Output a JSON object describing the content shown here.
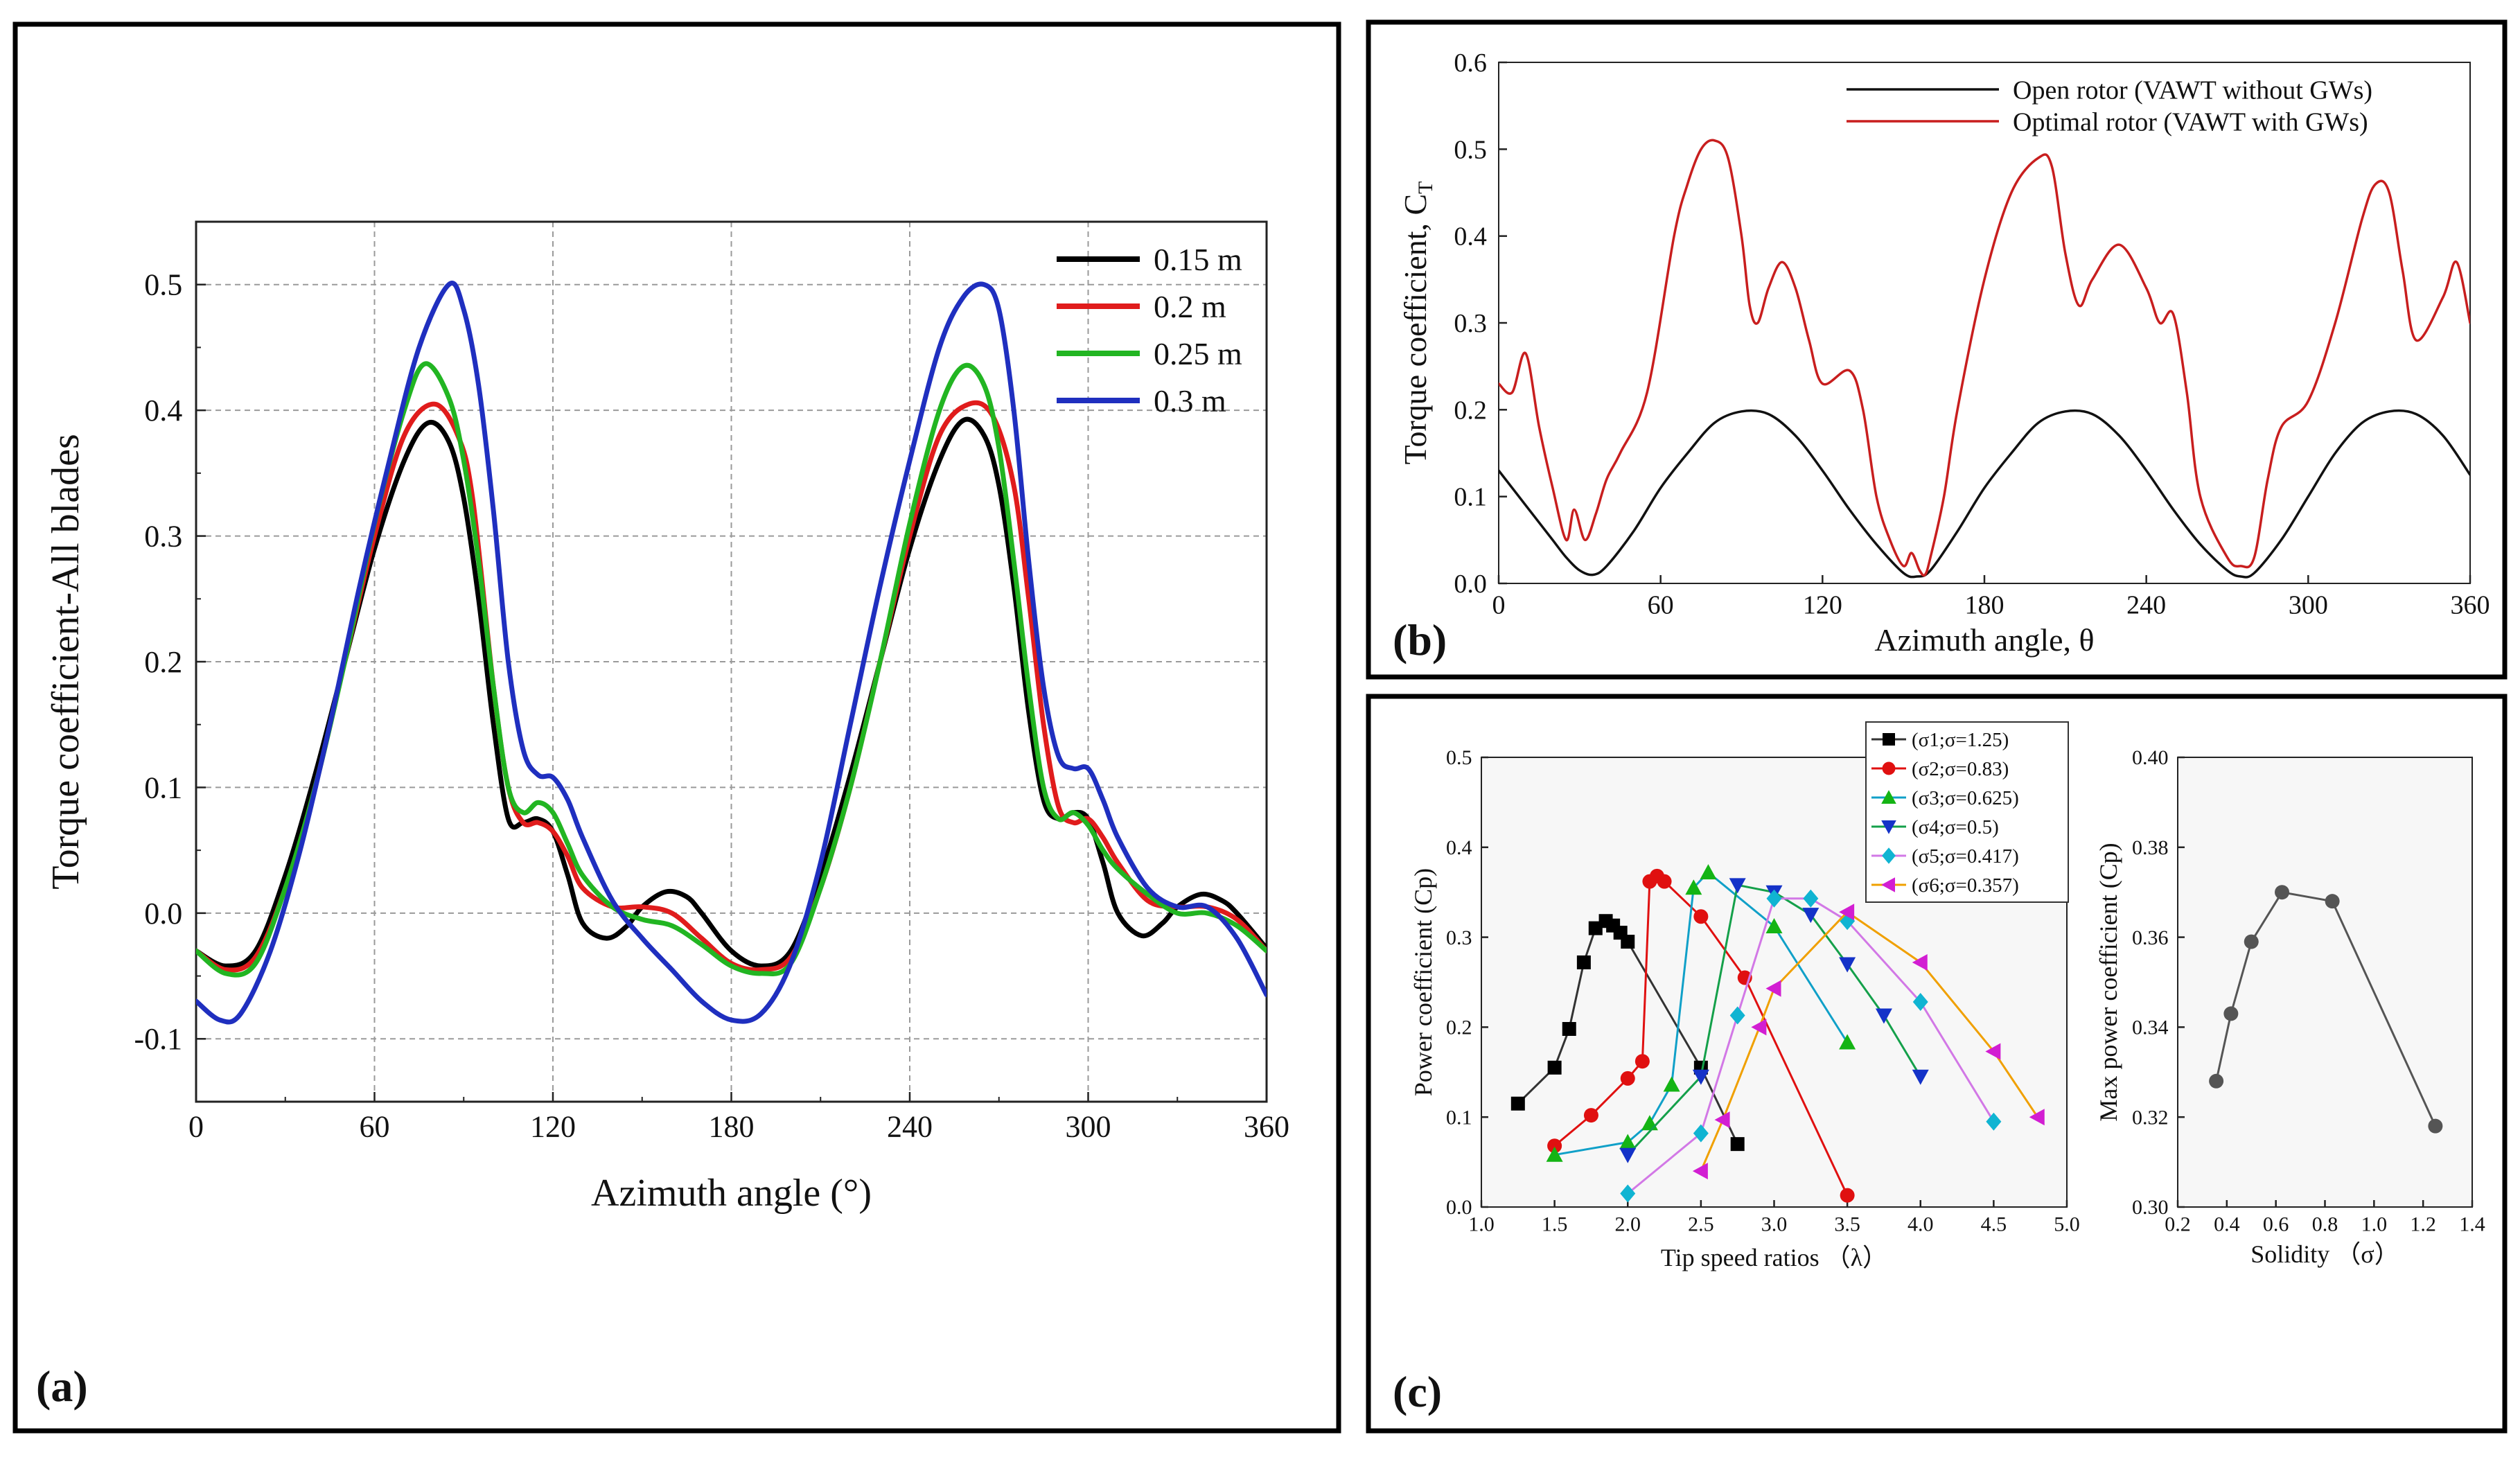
{
  "chart_data": [
    {
      "panel_label": "(a)",
      "type": "line",
      "xlabel": "Azimuth angle (°)",
      "ylabel": "Torque coefficient-All blades",
      "xlim": [
        0,
        360
      ],
      "ylim": [
        -0.15,
        0.55
      ],
      "x_ticks": [
        "0",
        "60",
        "120",
        "180",
        "240",
        "300",
        "360"
      ],
      "y_ticks": [
        "-0.1",
        "0.0",
        "0.1",
        "0.2",
        "0.3",
        "0.4",
        "0.5"
      ],
      "grid": true,
      "legend_position": "top-right",
      "series": [
        {
          "name": "0.15 m",
          "color": "#000000",
          "x": [
            0,
            10,
            20,
            30,
            40,
            50,
            60,
            70,
            78,
            85,
            90,
            95,
            100,
            105,
            110,
            115,
            120,
            125,
            130,
            138,
            145,
            150,
            158,
            165,
            170,
            180,
            190,
            200,
            210,
            220,
            230,
            240,
            250,
            258,
            265,
            270,
            275,
            280,
            285,
            290,
            295,
            300,
            305,
            310,
            318,
            325,
            330,
            338,
            345,
            350,
            360
          ],
          "y": [
            -0.03,
            -0.042,
            -0.03,
            0.03,
            0.11,
            0.2,
            0.29,
            0.36,
            0.39,
            0.375,
            0.33,
            0.25,
            0.15,
            0.075,
            0.072,
            0.075,
            0.065,
            0.03,
            -0.008,
            -0.02,
            -0.01,
            0.005,
            0.017,
            0.013,
            0.0,
            -0.03,
            -0.042,
            -0.03,
            0.03,
            0.11,
            0.2,
            0.29,
            0.36,
            0.392,
            0.38,
            0.34,
            0.26,
            0.16,
            0.09,
            0.075,
            0.08,
            0.075,
            0.04,
            0.0,
            -0.018,
            -0.008,
            0.005,
            0.015,
            0.01,
            0.0,
            -0.028
          ]
        },
        {
          "name": "0.2 m",
          "color": "#e01c1c",
          "x": [
            0,
            10,
            20,
            30,
            40,
            50,
            60,
            70,
            80,
            88,
            93,
            100,
            105,
            110,
            115,
            120,
            125,
            130,
            140,
            150,
            160,
            170,
            180,
            190,
            200,
            210,
            220,
            230,
            240,
            250,
            260,
            268,
            275,
            280,
            285,
            290,
            295,
            300,
            305,
            310,
            320,
            330,
            340,
            350,
            360
          ],
          "y": [
            -0.03,
            -0.045,
            -0.035,
            0.02,
            0.1,
            0.2,
            0.3,
            0.38,
            0.405,
            0.38,
            0.33,
            0.18,
            0.1,
            0.072,
            0.072,
            0.065,
            0.045,
            0.02,
            0.005,
            0.005,
            0.0,
            -0.02,
            -0.04,
            -0.045,
            -0.035,
            0.02,
            0.1,
            0.2,
            0.3,
            0.38,
            0.405,
            0.395,
            0.34,
            0.25,
            0.15,
            0.085,
            0.072,
            0.075,
            0.06,
            0.04,
            0.01,
            0.005,
            0.005,
            -0.005,
            -0.03
          ]
        },
        {
          "name": "0.25 m",
          "color": "#22b522",
          "x": [
            0,
            10,
            20,
            30,
            40,
            50,
            60,
            70,
            77,
            85,
            90,
            95,
            100,
            105,
            110,
            115,
            120,
            125,
            130,
            140,
            150,
            160,
            170,
            180,
            190,
            200,
            210,
            220,
            230,
            240,
            250,
            258,
            265,
            270,
            275,
            280,
            285,
            290,
            295,
            300,
            305,
            310,
            320,
            330,
            340,
            350,
            360
          ],
          "y": [
            -0.03,
            -0.048,
            -0.04,
            0.02,
            0.1,
            0.2,
            0.31,
            0.4,
            0.437,
            0.41,
            0.36,
            0.28,
            0.18,
            0.1,
            0.08,
            0.088,
            0.08,
            0.055,
            0.03,
            0.005,
            -0.005,
            -0.01,
            -0.025,
            -0.042,
            -0.048,
            -0.04,
            0.02,
            0.1,
            0.2,
            0.31,
            0.4,
            0.435,
            0.42,
            0.37,
            0.28,
            0.18,
            0.1,
            0.075,
            0.08,
            0.07,
            0.05,
            0.035,
            0.015,
            0.0,
            0.0,
            -0.01,
            -0.03
          ]
        },
        {
          "name": "0.3 m",
          "color": "#1f2fbf",
          "x": [
            0,
            8,
            15,
            25,
            35,
            45,
            55,
            65,
            75,
            85,
            90,
            95,
            100,
            105,
            110,
            115,
            120,
            125,
            130,
            140,
            150,
            160,
            170,
            180,
            190,
            200,
            210,
            220,
            230,
            240,
            250,
            258,
            265,
            270,
            275,
            280,
            285,
            290,
            295,
            300,
            305,
            310,
            320,
            330,
            340,
            350,
            360
          ],
          "y": [
            -0.07,
            -0.085,
            -0.08,
            -0.03,
            0.05,
            0.15,
            0.26,
            0.36,
            0.45,
            0.5,
            0.48,
            0.42,
            0.32,
            0.2,
            0.13,
            0.11,
            0.108,
            0.09,
            0.06,
            0.01,
            -0.02,
            -0.045,
            -0.07,
            -0.085,
            -0.08,
            -0.04,
            0.04,
            0.15,
            0.26,
            0.36,
            0.45,
            0.49,
            0.5,
            0.48,
            0.4,
            0.28,
            0.18,
            0.125,
            0.115,
            0.115,
            0.09,
            0.06,
            0.02,
            0.005,
            0.005,
            -0.02,
            -0.065
          ]
        }
      ]
    },
    {
      "panel_label": "(b)",
      "type": "line",
      "xlabel": "Azimuth angle, θ",
      "ylabel": "Torque coefficient, C",
      "ylabel_sub": "T",
      "xlim": [
        0,
        360
      ],
      "ylim": [
        0,
        0.6
      ],
      "x_ticks": [
        "0",
        "60",
        "120",
        "180",
        "240",
        "300",
        "360"
      ],
      "y_ticks": [
        "0.0",
        "0.1",
        "0.2",
        "0.3",
        "0.4",
        "0.5",
        "0.6"
      ],
      "grid": false,
      "legend_position": "top-right",
      "series": [
        {
          "name": "Open rotor (VAWT without GWs)",
          "color": "#111111",
          "x": [
            0,
            10,
            20,
            25,
            30,
            35,
            40,
            50,
            60,
            70,
            80,
            90,
            100,
            110,
            120,
            130,
            140,
            150,
            155,
            160,
            170,
            180,
            190,
            200,
            210,
            220,
            230,
            240,
            250,
            260,
            270,
            275,
            280,
            290,
            300,
            310,
            320,
            330,
            340,
            350,
            360
          ],
          "y": [
            0.13,
            0.09,
            0.05,
            0.03,
            0.015,
            0.01,
            0.02,
            0.06,
            0.11,
            0.15,
            0.185,
            0.198,
            0.195,
            0.17,
            0.13,
            0.085,
            0.045,
            0.012,
            0.008,
            0.015,
            0.06,
            0.11,
            0.15,
            0.185,
            0.198,
            0.195,
            0.17,
            0.13,
            0.085,
            0.045,
            0.015,
            0.008,
            0.012,
            0.05,
            0.1,
            0.15,
            0.185,
            0.198,
            0.195,
            0.17,
            0.125
          ]
        },
        {
          "name": "Optimal rotor (VAWT with GWs)",
          "color": "#c81e1e",
          "x": [
            0,
            5,
            10,
            15,
            20,
            25,
            28,
            32,
            36,
            40,
            45,
            55,
            65,
            70,
            75,
            80,
            85,
            90,
            93,
            96,
            100,
            105,
            110,
            115,
            120,
            130,
            135,
            140,
            145,
            150,
            153,
            156,
            158,
            160,
            165,
            170,
            180,
            190,
            200,
            205,
            210,
            215,
            220,
            230,
            240,
            245,
            250,
            255,
            260,
            270,
            275,
            280,
            285,
            290,
            300,
            310,
            320,
            325,
            330,
            335,
            340,
            350,
            355,
            360
          ],
          "y": [
            0.23,
            0.22,
            0.265,
            0.18,
            0.11,
            0.05,
            0.085,
            0.05,
            0.08,
            0.12,
            0.15,
            0.22,
            0.4,
            0.46,
            0.5,
            0.51,
            0.49,
            0.4,
            0.32,
            0.3,
            0.34,
            0.37,
            0.34,
            0.28,
            0.23,
            0.245,
            0.2,
            0.1,
            0.05,
            0.02,
            0.035,
            0.015,
            0.01,
            0.03,
            0.1,
            0.2,
            0.35,
            0.45,
            0.49,
            0.48,
            0.38,
            0.32,
            0.35,
            0.39,
            0.34,
            0.3,
            0.31,
            0.22,
            0.1,
            0.03,
            0.02,
            0.03,
            0.12,
            0.18,
            0.21,
            0.3,
            0.42,
            0.46,
            0.45,
            0.36,
            0.28,
            0.33,
            0.37,
            0.3
          ]
        }
      ]
    },
    {
      "panel_label": "(c)",
      "type": "line",
      "xlabel": "Tip speed ratios （λ）",
      "ylabel": "Power coefficient (Cp)",
      "xlim": [
        1.0,
        5.0
      ],
      "ylim": [
        0.0,
        0.5
      ],
      "x_ticks": [
        "1.0",
        "1.5",
        "2.0",
        "2.5",
        "3.0",
        "3.5",
        "4.0",
        "4.5",
        "5.0"
      ],
      "y_ticks": [
        "0.0",
        "0.1",
        "0.2",
        "0.3",
        "0.4",
        "0.5"
      ],
      "grid": false,
      "legend_position": "top-right",
      "series": [
        {
          "name": "(σ1;σ=1.25)",
          "color": "#000000",
          "marker": "square",
          "x": [
            1.25,
            1.5,
            1.6,
            1.7,
            1.78,
            1.85,
            1.9,
            1.95,
            2.0,
            2.5,
            2.75
          ],
          "y": [
            0.115,
            0.155,
            0.198,
            0.272,
            0.31,
            0.318,
            0.313,
            0.305,
            0.295,
            0.155,
            0.07
          ]
        },
        {
          "name": "(σ2;σ=0.83)",
          "color": "#e01010",
          "marker": "circle",
          "x": [
            1.5,
            1.75,
            2.0,
            2.1,
            2.15,
            2.2,
            2.25,
            2.5,
            2.8,
            3.5
          ],
          "y": [
            0.068,
            0.102,
            0.143,
            0.162,
            0.362,
            0.368,
            0.362,
            0.323,
            0.255,
            0.013
          ]
        },
        {
          "name": "(σ3;σ=0.625)",
          "color": "#14b414",
          "marker": "triangle-up",
          "x": [
            1.5,
            2.0,
            2.15,
            2.3,
            2.45,
            2.55,
            3.0,
            3.5
          ],
          "y": [
            0.058,
            0.072,
            0.093,
            0.136,
            0.355,
            0.372,
            0.312,
            0.183
          ]
        },
        {
          "name": "(σ4;σ=0.5)",
          "color": "#1432c8",
          "marker": "triangle-down",
          "x": [
            2.0,
            2.5,
            2.75,
            3.0,
            3.25,
            3.5,
            3.75,
            4.0
          ],
          "y": [
            0.058,
            0.145,
            0.358,
            0.35,
            0.325,
            0.27,
            0.213,
            0.145
          ]
        },
        {
          "name": "(σ5;σ=0.417)",
          "color": "#10b4d2",
          "marker": "diamond",
          "x": [
            2.0,
            2.5,
            2.75,
            3.0,
            3.25,
            3.5,
            4.0,
            4.5
          ],
          "y": [
            0.015,
            0.082,
            0.213,
            0.343,
            0.343,
            0.318,
            0.228,
            0.095
          ]
        },
        {
          "name": "(σ6;σ=0.357)",
          "color": "#d21ed2",
          "marker": "triangle-left",
          "x": [
            2.5,
            2.65,
            2.9,
            3.0,
            3.5,
            4.0,
            4.5,
            4.8
          ],
          "y": [
            0.04,
            0.097,
            0.2,
            0.243,
            0.328,
            0.272,
            0.173,
            0.1
          ]
        }
      ],
      "line_colors_note_only": {
        "σ6": "#f0a000",
        "σ3": "#10a0c8",
        "σ4": "#14a04a",
        "σ5": "#d278e6"
      }
    },
    {
      "panel_label": "",
      "type": "scatter",
      "xlabel": "Solidity （σ）",
      "ylabel": "Max power coefficient (Cp)",
      "xlim": [
        0.2,
        1.4
      ],
      "ylim": [
        0.3,
        0.4
      ],
      "x_ticks": [
        "0.2",
        "0.4",
        "0.6",
        "0.8",
        "1.0",
        "1.2",
        "1.4"
      ],
      "y_ticks": [
        "0.30",
        "0.32",
        "0.34",
        "0.36",
        "0.38",
        "0.40"
      ],
      "grid": false,
      "series": [
        {
          "name": "",
          "color": "#555555",
          "marker": "circle",
          "x": [
            0.357,
            0.417,
            0.5,
            0.625,
            0.83,
            1.25
          ],
          "y": [
            0.328,
            0.343,
            0.359,
            0.37,
            0.368,
            0.318
          ]
        }
      ]
    }
  ]
}
